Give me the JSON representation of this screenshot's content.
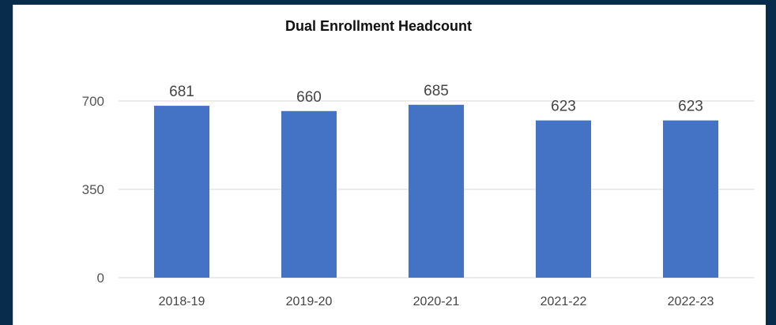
{
  "colors": {
    "background": "#082c4c",
    "card": "#ffffff",
    "bar": "#4472c4",
    "gridline": "#d9d9d9"
  },
  "chart_data": {
    "type": "bar",
    "title": "Dual Enrollment Headcount",
    "xlabel": "",
    "ylabel": "",
    "categories": [
      "2018-19",
      "2019-20",
      "2020-21",
      "2021-22",
      "2022-23"
    ],
    "values": [
      681,
      660,
      685,
      623,
      623
    ],
    "ylim": [
      0,
      700
    ],
    "yticks": [
      0,
      350,
      700
    ],
    "grid": true,
    "legend": "none"
  }
}
